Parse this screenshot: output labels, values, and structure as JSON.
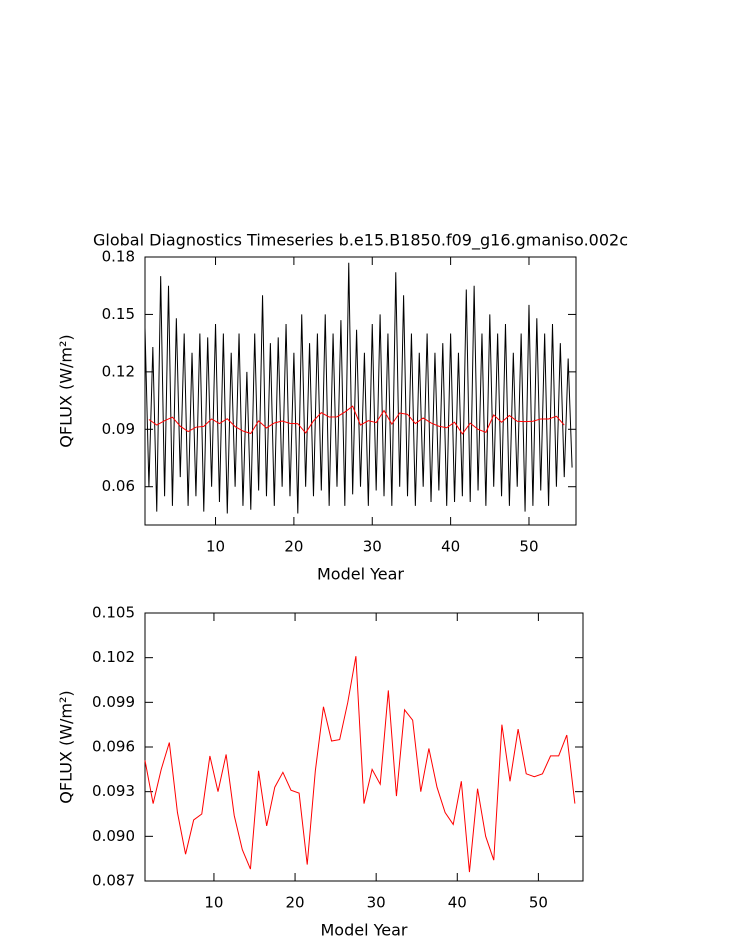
{
  "chart_data": [
    {
      "type": "line",
      "title": "Global Diagnostics Timeseries b.e15.B1850.f09_g16.gmaniso.002c",
      "xlabel": "Model Year",
      "ylabel": "QFLUX (W/m²)",
      "xlim": [
        1,
        56
      ],
      "ylim": [
        0.04,
        0.18
      ],
      "xticks": [
        10,
        20,
        30,
        40,
        50
      ],
      "yticks": [
        0.06,
        0.09,
        0.12,
        0.15,
        0.18
      ],
      "series": [
        {
          "color": "#000000",
          "x": [
            1,
            1.5,
            2,
            2.5,
            3,
            3.5,
            4,
            4.5,
            5,
            5.5,
            6,
            6.5,
            7,
            7.5,
            8,
            8.5,
            9,
            9.5,
            10,
            10.5,
            11,
            11.5,
            12,
            12.5,
            13,
            13.5,
            14,
            14.5,
            15,
            15.5,
            16,
            16.5,
            17,
            17.5,
            18,
            18.5,
            19,
            19.5,
            20,
            20.5,
            21,
            21.5,
            22,
            22.5,
            23,
            23.5,
            24,
            24.5,
            25,
            25.5,
            26,
            26.5,
            27,
            27.5,
            28,
            28.5,
            29,
            29.5,
            30,
            30.5,
            31,
            31.5,
            32,
            32.5,
            33,
            33.5,
            34,
            34.5,
            35,
            35.5,
            36,
            36.5,
            37,
            37.5,
            38,
            38.5,
            39,
            39.5,
            40,
            40.5,
            41,
            41.5,
            42,
            42.5,
            43,
            43.5,
            44,
            44.5,
            45,
            45.5,
            46,
            46.5,
            47,
            47.5,
            48,
            48.5,
            49,
            49.5,
            50,
            50.5,
            51,
            51.5,
            52,
            52.5,
            53,
            53.5,
            54,
            54.5,
            55,
            55.5
          ],
          "values": [
            0.143,
            0.06,
            0.133,
            0.047,
            0.17,
            0.055,
            0.165,
            0.05,
            0.148,
            0.065,
            0.14,
            0.05,
            0.13,
            0.055,
            0.14,
            0.047,
            0.138,
            0.06,
            0.145,
            0.052,
            0.14,
            0.046,
            0.13,
            0.06,
            0.14,
            0.05,
            0.12,
            0.048,
            0.14,
            0.058,
            0.16,
            0.055,
            0.135,
            0.05,
            0.138,
            0.06,
            0.145,
            0.055,
            0.13,
            0.046,
            0.15,
            0.06,
            0.135,
            0.055,
            0.14,
            0.058,
            0.15,
            0.05,
            0.14,
            0.06,
            0.147,
            0.05,
            0.177,
            0.056,
            0.142,
            0.06,
            0.13,
            0.05,
            0.145,
            0.058,
            0.15,
            0.055,
            0.14,
            0.05,
            0.172,
            0.06,
            0.16,
            0.055,
            0.14,
            0.05,
            0.13,
            0.06,
            0.14,
            0.052,
            0.13,
            0.058,
            0.135,
            0.05,
            0.14,
            0.052,
            0.13,
            0.055,
            0.163,
            0.052,
            0.165,
            0.058,
            0.14,
            0.05,
            0.15,
            0.06,
            0.14,
            0.055,
            0.145,
            0.05,
            0.13,
            0.06,
            0.14,
            0.047,
            0.155,
            0.05,
            0.148,
            0.058,
            0.14,
            0.05,
            0.145,
            0.06,
            0.135,
            0.065,
            0.127,
            0.07
          ]
        },
        {
          "color": "#ff0000",
          "x": [
            1.5,
            2.5,
            3.5,
            4.5,
            5.5,
            6.5,
            7.5,
            8.5,
            9.5,
            10.5,
            11.5,
            12.5,
            13.5,
            14.5,
            15.5,
            16.5,
            17.5,
            18.5,
            19.5,
            20.5,
            21.5,
            22.5,
            23.5,
            24.5,
            25.5,
            26.5,
            27.5,
            28.5,
            29.5,
            30.5,
            31.5,
            32.5,
            33.5,
            34.5,
            35.5,
            36.5,
            37.5,
            38.5,
            39.5,
            40.5,
            41.5,
            42.5,
            43.5,
            44.5,
            45.5,
            46.5,
            47.5,
            48.5,
            49.5,
            50.5,
            51.5,
            52.5,
            53.5,
            54.5
          ],
          "values": [
            0.0951,
            0.0922,
            0.0945,
            0.0963,
            0.0916,
            0.0888,
            0.0911,
            0.0915,
            0.0954,
            0.093,
            0.0955,
            0.0914,
            0.0891,
            0.0878,
            0.0944,
            0.0907,
            0.0933,
            0.0943,
            0.0931,
            0.0929,
            0.0881,
            0.0944,
            0.0987,
            0.0964,
            0.0965,
            0.099,
            0.1021,
            0.0922,
            0.0945,
            0.0935,
            0.0998,
            0.0927,
            0.0985,
            0.0978,
            0.093,
            0.0959,
            0.0933,
            0.0916,
            0.0908,
            0.0937,
            0.0876,
            0.0932,
            0.09,
            0.0884,
            0.0975,
            0.0937,
            0.0972,
            0.0942,
            0.094,
            0.0942,
            0.0954,
            0.0954,
            0.0968,
            0.0922
          ]
        }
      ]
    },
    {
      "type": "line",
      "xlabel": "Model Year",
      "ylabel": "QFLUX (W/m²)",
      "xlim": [
        1.5,
        55.5
      ],
      "ylim": [
        0.087,
        0.105
      ],
      "xticks": [
        10,
        20,
        30,
        40,
        50
      ],
      "yticks": [
        0.087,
        {
          "value": 0.09,
          "label": "0.090"
        },
        0.093,
        0.096,
        0.099,
        0.102,
        0.105
      ],
      "series": [
        {
          "color": "#ff0000",
          "x": [
            1.5,
            2.5,
            3.5,
            4.5,
            5.5,
            6.5,
            7.5,
            8.5,
            9.5,
            10.5,
            11.5,
            12.5,
            13.5,
            14.5,
            15.5,
            16.5,
            17.5,
            18.5,
            19.5,
            20.5,
            21.5,
            22.5,
            23.5,
            24.5,
            25.5,
            26.5,
            27.5,
            28.5,
            29.5,
            30.5,
            31.5,
            32.5,
            33.5,
            34.5,
            35.5,
            36.5,
            37.5,
            38.5,
            39.5,
            40.5,
            41.5,
            42.5,
            43.5,
            44.5,
            45.5,
            46.5,
            47.5,
            48.5,
            49.5,
            50.5,
            51.5,
            52.5,
            53.5,
            54.5
          ],
          "values": [
            0.0951,
            0.0922,
            0.0945,
            0.0963,
            0.0916,
            0.0888,
            0.0911,
            0.0915,
            0.0954,
            0.093,
            0.0955,
            0.0914,
            0.0891,
            0.0878,
            0.0944,
            0.0907,
            0.0933,
            0.0943,
            0.0931,
            0.0929,
            0.0881,
            0.0944,
            0.0987,
            0.0964,
            0.0965,
            0.099,
            0.1021,
            0.0922,
            0.0945,
            0.0935,
            0.0998,
            0.0927,
            0.0985,
            0.0978,
            0.093,
            0.0959,
            0.0933,
            0.0916,
            0.0908,
            0.0937,
            0.0876,
            0.0932,
            0.09,
            0.0884,
            0.0975,
            0.0937,
            0.0972,
            0.0942,
            0.094,
            0.0942,
            0.0954,
            0.0954,
            0.0968,
            0.0922
          ]
        }
      ]
    }
  ]
}
